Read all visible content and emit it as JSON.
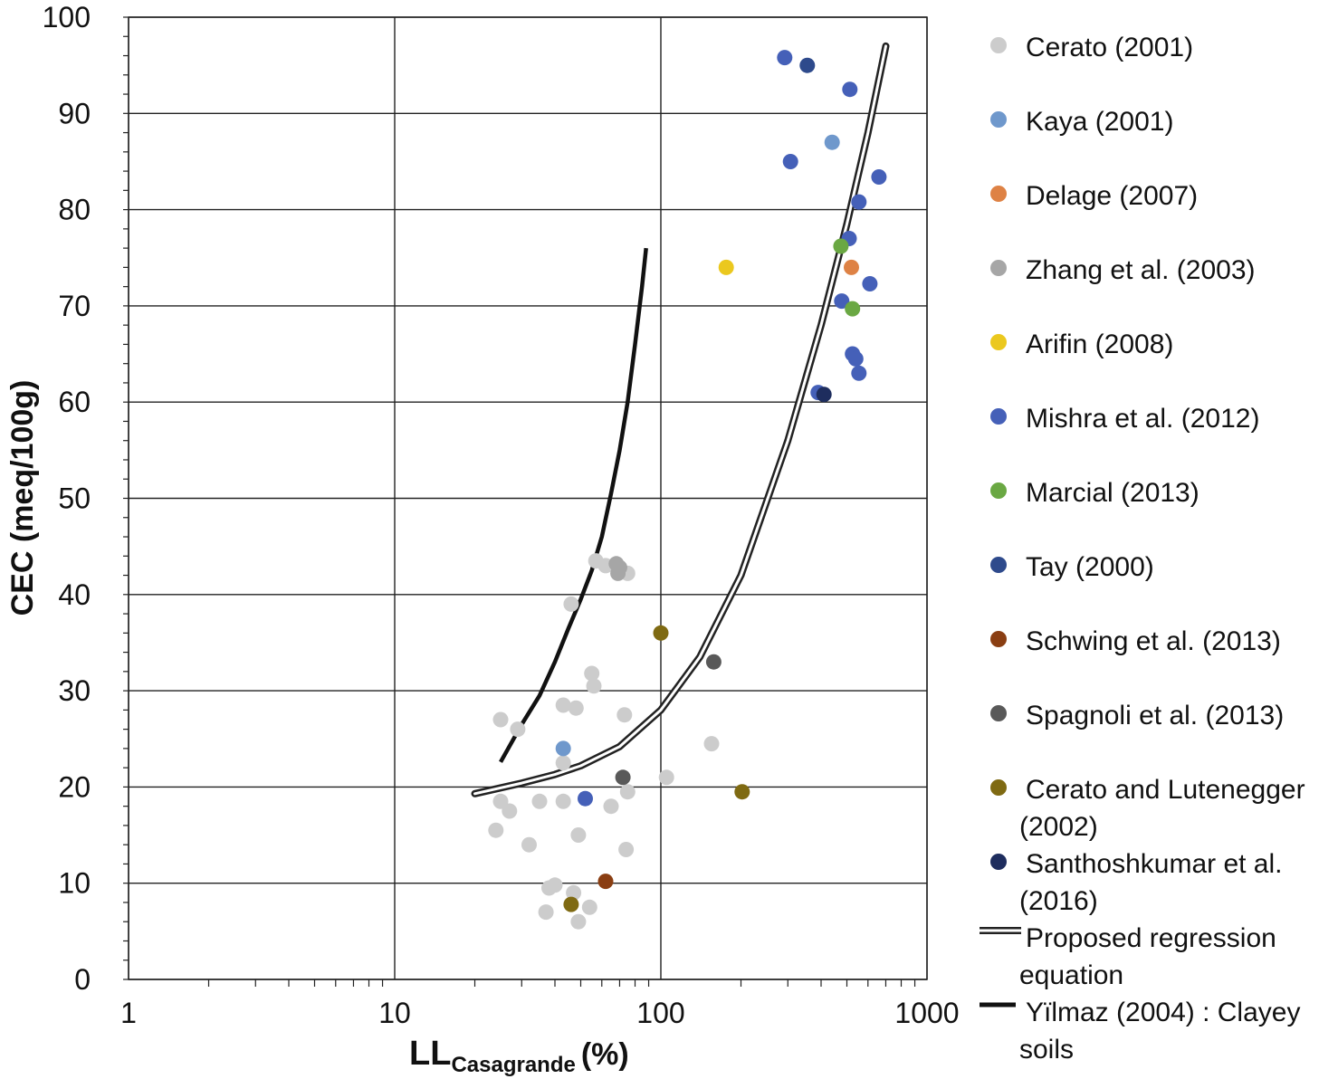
{
  "chart_data": {
    "type": "scatter",
    "x_scale": "log",
    "xlim": [
      1,
      1000
    ],
    "ylim": [
      0,
      100
    ],
    "grid": true,
    "legend_position": "right",
    "x_ticks": [
      "1",
      "10",
      "100",
      "1000"
    ],
    "y_ticks": [
      "0",
      "10",
      "20",
      "30",
      "40",
      "50",
      "60",
      "70",
      "80",
      "90",
      "100"
    ],
    "xlabel_main": "LL",
    "xlabel_sub": "Casagrande",
    "xlabel_unit": "(%)",
    "ylabel": "CEC (meq/100g)",
    "series": [
      {
        "name": "Cerato (2001)",
        "color": "#cccccc",
        "points": [
          [
            57,
            43.5
          ],
          [
            62,
            43
          ],
          [
            75,
            42.2
          ],
          [
            46,
            39
          ],
          [
            55,
            31.8
          ],
          [
            56,
            30.5
          ],
          [
            43,
            28.5
          ],
          [
            48,
            28.2
          ],
          [
            25,
            27
          ],
          [
            29,
            26
          ],
          [
            73,
            27.5
          ],
          [
            43,
            22.5
          ],
          [
            105,
            21
          ],
          [
            155,
            24.5
          ],
          [
            25,
            18.5
          ],
          [
            27,
            17.5
          ],
          [
            35,
            18.5
          ],
          [
            43,
            18.5
          ],
          [
            65,
            18
          ],
          [
            75,
            19.5
          ],
          [
            24,
            15.5
          ],
          [
            32,
            14
          ],
          [
            49,
            15
          ],
          [
            74,
            13.5
          ],
          [
            38,
            9.5
          ],
          [
            40,
            9.8
          ],
          [
            47,
            9
          ],
          [
            37,
            7
          ],
          [
            54,
            7.5
          ],
          [
            49,
            6
          ]
        ]
      },
      {
        "name": "Kaya (2001)",
        "color": "#6f98cc",
        "points": [
          [
            440,
            87
          ],
          [
            43,
            24
          ]
        ]
      },
      {
        "name": "Delage (2007)",
        "color": "#de8245",
        "points": [
          [
            520,
            74
          ]
        ]
      },
      {
        "name": "Zhang et al. (2003)",
        "color": "#a6a6a6",
        "points": [
          [
            68,
            43.2
          ],
          [
            69,
            42.2
          ],
          [
            70,
            42.8
          ]
        ]
      },
      {
        "name": "Arifin (2008)",
        "color": "#ebc81e",
        "points": [
          [
            176,
            74
          ]
        ]
      },
      {
        "name": "Mishra et al. (2012)",
        "color": "#4560b8",
        "points": [
          [
            292,
            95.8
          ],
          [
            513,
            92.5
          ],
          [
            307,
            85
          ],
          [
            660,
            83.4
          ],
          [
            555,
            80.8
          ],
          [
            510,
            77
          ],
          [
            478,
            70.5
          ],
          [
            610,
            72.3
          ],
          [
            525,
            65
          ],
          [
            540,
            64.5
          ],
          [
            555,
            63
          ],
          [
            390,
            61
          ],
          [
            52,
            18.8
          ]
        ]
      },
      {
        "name": "Marcial (2013)",
        "color": "#6aa843",
        "points": [
          [
            475,
            76.2
          ],
          [
            525,
            69.7
          ]
        ]
      },
      {
        "name": "Tay (2000)",
        "color": "#2e4a8c",
        "points": [
          [
            355,
            95
          ]
        ]
      },
      {
        "name": "Schwing et al. (2013)",
        "color": "#8a3e12",
        "points": [
          [
            62,
            10.2
          ]
        ]
      },
      {
        "name": "Spagnoli et al. (2013)",
        "color": "#595959",
        "points": [
          [
            158,
            33
          ],
          [
            72,
            21
          ]
        ]
      },
      {
        "name": "Cerato and Lutenegger (2002)",
        "color": "#7f6a12",
        "points": [
          [
            100,
            36
          ],
          [
            202,
            19.5
          ],
          [
            46,
            7.8
          ]
        ]
      },
      {
        "name": "Santhoshkumar et al. (2016)",
        "color": "#1e2d5e",
        "points": [
          [
            410,
            60.8
          ]
        ]
      }
    ],
    "curves": [
      {
        "name": "Proposed regression equation",
        "style": "double",
        "color": "#222222",
        "points": [
          [
            20,
            19.3
          ],
          [
            30,
            20.4
          ],
          [
            40,
            21.3
          ],
          [
            50,
            22.2
          ],
          [
            70,
            24.2
          ],
          [
            100,
            28
          ],
          [
            140,
            33.5
          ],
          [
            200,
            42
          ],
          [
            300,
            56
          ],
          [
            400,
            68
          ],
          [
            500,
            78.5
          ],
          [
            600,
            88
          ],
          [
            700,
            97
          ]
        ]
      },
      {
        "name": "Yïlmaz (2004) : Clayey soils",
        "style": "solid",
        "color": "#111111",
        "points": [
          [
            25,
            22.6
          ],
          [
            30,
            26.5
          ],
          [
            35,
            29.5
          ],
          [
            40,
            33
          ],
          [
            45,
            36.5
          ],
          [
            50,
            39.5
          ],
          [
            55,
            42.5
          ],
          [
            60,
            46
          ],
          [
            65,
            50.5
          ],
          [
            70,
            55
          ],
          [
            75,
            60
          ],
          [
            80,
            66
          ],
          [
            85,
            72
          ],
          [
            88,
            76
          ]
        ]
      }
    ],
    "legend": [
      {
        "kind": "marker",
        "lines": [
          "Cerato (2001)"
        ],
        "color": "#cccccc"
      },
      {
        "kind": "marker",
        "lines": [
          "Kaya (2001)"
        ],
        "color": "#6f98cc"
      },
      {
        "kind": "marker",
        "lines": [
          "Delage (2007)"
        ],
        "color": "#de8245"
      },
      {
        "kind": "marker",
        "lines": [
          "Zhang et al. (2003)"
        ],
        "color": "#a6a6a6"
      },
      {
        "kind": "marker",
        "lines": [
          "Arifin (2008)"
        ],
        "color": "#ebc81e"
      },
      {
        "kind": "marker",
        "lines": [
          "Mishra et al. (2012)"
        ],
        "color": "#4560b8"
      },
      {
        "kind": "marker",
        "lines": [
          "Marcial (2013)"
        ],
        "color": "#6aa843"
      },
      {
        "kind": "marker",
        "lines": [
          "Tay (2000)"
        ],
        "color": "#2e4a8c"
      },
      {
        "kind": "marker",
        "lines": [
          "Schwing et al. (2013)"
        ],
        "color": "#8a3e12"
      },
      {
        "kind": "marker",
        "lines": [
          "Spagnoli et al. (2013)"
        ],
        "color": "#595959"
      },
      {
        "kind": "marker",
        "lines": [
          "Cerato and Lutenegger",
          "(2002)"
        ],
        "color": "#7f6a12"
      },
      {
        "kind": "marker",
        "lines": [
          "Santhoshkumar et al.",
          "(2016)"
        ],
        "color": "#1e2d5e"
      },
      {
        "kind": "double-line",
        "lines": [
          "Proposed regression",
          "equation"
        ],
        "color": "#222222"
      },
      {
        "kind": "solid-line",
        "lines": [
          "Yïlmaz (2004) : Clayey",
          "soils"
        ],
        "color": "#111111"
      }
    ]
  }
}
